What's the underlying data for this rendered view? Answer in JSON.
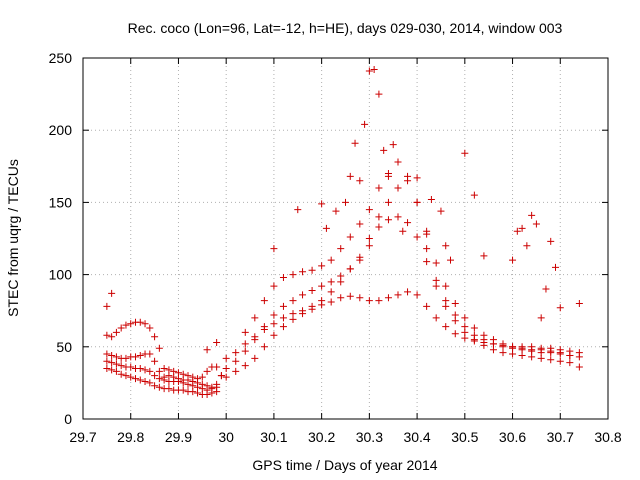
{
  "chart_data": {
    "type": "scatter",
    "title": "Rec. coco (Lon=96, Lat=-12, h=HE), days 029-030, 2014, window 003",
    "xlabel": "GPS time / Days of year 2014",
    "ylabel": "STEC from uqrg / TECUs",
    "xlim": [
      29.7,
      30.8
    ],
    "ylim": [
      0,
      250
    ],
    "xticks": [
      "29.7",
      "29.8",
      "29.9",
      "30",
      "30.1",
      "30.2",
      "30.3",
      "30.4",
      "30.5",
      "30.6",
      "30.7",
      "30.8"
    ],
    "yticks": [
      "0",
      "50",
      "100",
      "150",
      "200",
      "250"
    ],
    "grid": true,
    "marker": "plus",
    "color": "#cc0000",
    "series": [
      {
        "x": [
          29.75,
          29.76,
          29.77,
          29.78,
          29.79,
          29.8,
          29.81,
          29.82,
          29.83,
          29.84,
          29.85,
          29.86,
          29.87,
          29.88,
          29.89,
          29.9,
          29.91,
          29.92,
          29.93,
          29.94,
          29.95,
          29.96,
          29.97,
          29.98,
          29.99
        ],
        "y": [
          45,
          44,
          43,
          42,
          42,
          43,
          43,
          44,
          45,
          45,
          40,
          33,
          29,
          30,
          29,
          28,
          27,
          27,
          26,
          25,
          24,
          23,
          22,
          22,
          30
        ]
      },
      {
        "x": [
          29.75,
          29.76,
          29.77,
          29.78,
          29.79,
          29.8,
          29.81,
          29.82,
          29.83,
          29.84,
          29.85,
          29.86,
          29.87,
          29.88,
          29.89,
          29.9,
          29.91,
          29.92,
          29.93,
          29.94,
          29.95,
          29.96,
          29.97,
          29.98,
          29.99
        ],
        "y": [
          40,
          39,
          38,
          37,
          36,
          36,
          35,
          35,
          34,
          33,
          30,
          28,
          27,
          26,
          26,
          26,
          25,
          24,
          23,
          22,
          21,
          20,
          21,
          24,
          30
        ]
      },
      {
        "x": [
          29.75,
          29.76,
          29.77,
          29.78,
          29.79,
          29.8,
          29.81,
          29.82,
          29.83,
          29.84,
          29.85,
          29.86,
          29.87,
          29.88,
          29.89,
          29.9,
          29.91,
          29.92,
          29.93,
          29.94,
          29.95,
          29.96,
          29.97,
          29.98
        ],
        "y": [
          35,
          34,
          33,
          31,
          30,
          29,
          28,
          27,
          26,
          25,
          23,
          22,
          21,
          21,
          20,
          20,
          20,
          19,
          19,
          18,
          17,
          17,
          18,
          19
        ]
      },
      {
        "x": [
          29.75,
          29.76,
          29.77,
          29.78,
          29.79,
          29.8,
          29.81,
          29.82,
          29.83,
          29.84,
          29.85,
          29.86,
          29.87,
          29.88,
          29.89,
          29.9,
          29.91,
          29.92,
          29.93,
          29.94,
          29.95,
          29.96,
          29.97,
          29.98
        ],
        "y": [
          58,
          57,
          60,
          63,
          65,
          66,
          67,
          67,
          66,
          63,
          57,
          49,
          35,
          34,
          33,
          32,
          31,
          30,
          29,
          28,
          29,
          33,
          36,
          36
        ]
      },
      {
        "x": [
          30.0,
          30.02,
          30.04,
          30.06,
          30.08,
          30.1,
          30.12,
          30.14,
          30.16,
          30.18,
          30.2,
          30.22,
          30.24,
          30.26,
          30.28,
          30.3,
          30.32,
          30.34,
          30.36,
          30.38,
          30.4,
          30.42,
          30.44,
          30.46,
          30.48,
          30.5,
          30.52,
          30.54,
          30.56,
          30.58,
          30.6,
          30.62,
          30.64,
          30.66,
          30.68,
          30.7,
          30.72,
          30.74
        ],
        "y": [
          42,
          46,
          52,
          57,
          62,
          66,
          70,
          73,
          75,
          78,
          82,
          88,
          95,
          104,
          112,
          120,
          133,
          138,
          140,
          136,
          126,
          109,
          92,
          78,
          68,
          60,
          55,
          51,
          48,
          46,
          45,
          44,
          43,
          42,
          41,
          40,
          39,
          36
        ]
      },
      {
        "x": [
          30.0,
          30.02,
          30.04,
          30.06,
          30.08,
          30.1,
          30.12,
          30.14,
          30.16,
          30.18,
          30.2,
          30.22,
          30.24,
          30.26,
          30.28,
          30.3,
          30.32,
          30.34,
          30.36,
          30.38,
          30.4,
          30.42,
          30.44,
          30.46,
          30.48,
          30.5,
          30.52,
          30.54,
          30.56,
          30.58,
          30.6,
          30.62,
          30.64,
          30.66,
          30.68,
          30.7,
          30.72,
          30.74
        ],
        "y": [
          29,
          33,
          37,
          42,
          50,
          58,
          64,
          69,
          73,
          76,
          79,
          81,
          84,
          85,
          84,
          82,
          82,
          84,
          86,
          88,
          86,
          78,
          70,
          64,
          59,
          56,
          54,
          53,
          52,
          51,
          50,
          50,
          50,
          49,
          49,
          48,
          47,
          46
        ]
      },
      {
        "x": [
          30.0,
          30.02,
          30.04,
          30.06,
          30.08,
          30.1,
          30.12,
          30.14,
          30.16,
          30.18,
          30.2,
          30.22,
          30.24,
          30.26,
          30.28,
          30.3,
          30.32,
          30.34,
          30.36,
          30.38,
          30.4,
          30.42,
          30.44,
          30.46,
          30.48,
          30.5,
          30.52,
          30.54,
          30.56,
          30.58,
          30.6,
          30.62,
          30.64,
          30.66,
          30.68,
          30.7,
          30.72
        ],
        "y": [
          35,
          40,
          47,
          55,
          64,
          72,
          78,
          82,
          86,
          89,
          92,
          95,
          99,
          104,
          110,
          125,
          140,
          150,
          160,
          165,
          150,
          128,
          108,
          92,
          80,
          70,
          63,
          58,
          55,
          52,
          50,
          49,
          48,
          48,
          47,
          46,
          44
        ]
      },
      {
        "x": [
          30.04,
          30.06,
          30.08,
          30.1,
          30.12,
          30.14,
          30.16,
          30.18,
          30.2,
          30.22,
          30.24,
          30.26,
          30.28,
          30.3,
          30.32,
          30.34,
          30.36,
          30.38,
          30.4,
          30.42,
          30.44,
          30.46,
          30.48,
          30.5,
          30.52,
          30.54,
          30.56,
          30.58,
          30.6,
          30.62,
          30.64,
          30.66,
          30.68,
          30.7,
          30.72,
          30.74
        ],
        "y": [
          60,
          70,
          82,
          92,
          98,
          100,
          102,
          103,
          106,
          110,
          118,
          126,
          135,
          145,
          160,
          170,
          178,
          168,
          150,
          118,
          96,
          82,
          72,
          64,
          58,
          55,
          52,
          50,
          49,
          48,
          47,
          46,
          46,
          45,
          44,
          43
        ]
      },
      {
        "x": [
          29.75,
          29.76,
          29.96,
          29.98,
          30.1,
          30.15,
          30.2,
          30.21,
          30.23,
          30.25,
          30.26,
          30.27,
          30.28,
          30.29,
          30.3,
          30.31,
          30.32,
          30.33,
          30.34,
          30.35,
          30.37,
          30.4,
          30.42,
          30.43,
          30.45,
          30.46,
          30.47,
          30.5,
          30.52,
          30.54,
          30.6,
          30.61,
          30.62,
          30.63,
          30.64,
          30.65,
          30.66,
          30.67,
          30.68,
          30.69,
          30.7,
          30.74
        ],
        "y": [
          78,
          87,
          48,
          53,
          118,
          145,
          149,
          132,
          144,
          150,
          168,
          191,
          165,
          204,
          241,
          242,
          225,
          186,
          168,
          190,
          130,
          167,
          130,
          152,
          144,
          120,
          110,
          184,
          155,
          113,
          110,
          130,
          132,
          120,
          141,
          135,
          70,
          90,
          123,
          105,
          77,
          80
        ]
      }
    ]
  }
}
